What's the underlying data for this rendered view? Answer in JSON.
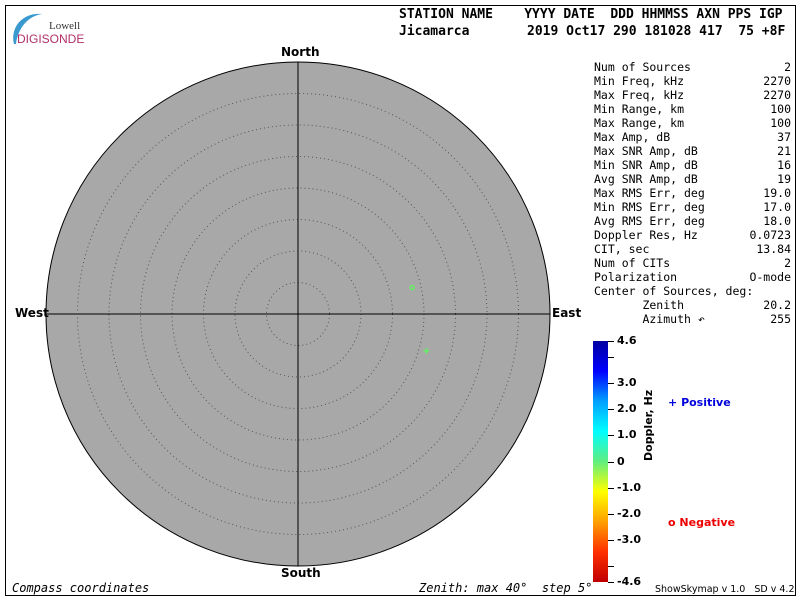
{
  "logo": {
    "line1": "Lowell",
    "line2": "DIGISONDE"
  },
  "header": {
    "labels": "STATION NAME    YYYY DATE  DDD HHMMSS AXN PPS IGP",
    "station": "Jicamarca",
    "values": "2019 Oct17 290 181028 417  75 +8F"
  },
  "compass": {
    "north": "North",
    "south": "South",
    "east": "East",
    "west": "West"
  },
  "skymap": {
    "zenith_max_deg": 40,
    "zenith_step_deg": 5,
    "background": "#a8a8a8",
    "sources": [
      {
        "zenith": 18.6,
        "azimuth": 77,
        "doppler": 0.1,
        "polarity": "negative",
        "color": "#66ee66"
      },
      {
        "zenith": 21.2,
        "azimuth": 106,
        "doppler": 0.1,
        "polarity": "positive",
        "color": "#66ee66"
      }
    ]
  },
  "stats": [
    {
      "label": "Num of Sources",
      "value": "2"
    },
    {
      "label": "Min Freq, kHz",
      "value": "2270"
    },
    {
      "label": "Max Freq, kHz",
      "value": "2270"
    },
    {
      "label": "Min Range, km",
      "value": "100"
    },
    {
      "label": "Max Range, km",
      "value": "100"
    },
    {
      "label": "Max Amp, dB",
      "value": "37"
    },
    {
      "label": "Max SNR Amp, dB",
      "value": "21"
    },
    {
      "label": "Min SNR Amp, dB",
      "value": "16"
    },
    {
      "label": "Avg SNR Amp, dB",
      "value": "19"
    },
    {
      "label": "Max RMS Err, deg",
      "value": "19.0"
    },
    {
      "label": "Min RMS Err, deg",
      "value": "17.0"
    },
    {
      "label": "Avg RMS Err, deg",
      "value": "18.0"
    },
    {
      "label": "Doppler Res, Hz",
      "value": "0.0723"
    },
    {
      "label": "CIT, sec",
      "value": "13.84"
    },
    {
      "label": "Num of CITs",
      "value": "2"
    },
    {
      "label": "Polarization",
      "value": "O-mode"
    },
    {
      "label": "Center of Sources, deg:",
      "value": ""
    },
    {
      "label": "       Zenith",
      "value": "20.2"
    },
    {
      "label": "       Azimuth ↶",
      "value": "255"
    }
  ],
  "colorbar": {
    "title": "Doppler, Hz",
    "min": -4.6,
    "max": 4.6,
    "ticks": [
      "4.6",
      "3.0",
      "2.0",
      "1.0",
      "0",
      "-1.0",
      "-2.0",
      "-3.0",
      "-4.6"
    ],
    "tick_values": [
      4.6,
      3.0,
      2.0,
      1.0,
      0,
      -1.0,
      -2.0,
      -3.0,
      -4.6
    ],
    "minor_ticks": [
      4.0,
      -4.0
    ],
    "colors": [
      "#0000a0",
      "#0000ff",
      "#00a0ff",
      "#00ffff",
      "#60ee80",
      "#ffff00",
      "#ffa000",
      "#ff3000",
      "#c00000"
    ]
  },
  "legend": {
    "positive": {
      "symbol": "+",
      "label": "Positive",
      "color": "#0000dd"
    },
    "negative": {
      "symbol": "o",
      "label": "Negative",
      "color": "#ee0000"
    }
  },
  "footer": {
    "left": "Compass coordinates",
    "center": "Zenith: max 40°  step 5°",
    "version": "ShowSkymap v 1.0   SD v 4.2"
  }
}
